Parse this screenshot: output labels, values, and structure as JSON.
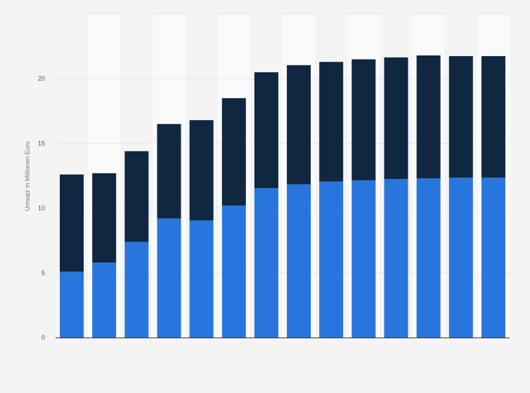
{
  "colors": {
    "background": "#f4f4f4",
    "stripe": "#fafafa",
    "gridline": "#dcdcdc",
    "axis_line": "#333333",
    "bottom_series": "#2876dd",
    "top_series": "#0f2740"
  },
  "chart_data": {
    "type": "bar",
    "stacked": true,
    "title": "",
    "xlabel": "",
    "ylabel": "Umsatz in Millionen Euro",
    "ylim": [
      0,
      25
    ],
    "yticks": [
      0,
      5,
      10,
      15,
      20
    ],
    "grid": true,
    "legend": "none",
    "categories_count": 14,
    "series": [
      {
        "color_key": "bottom_series",
        "values": [
          5.1,
          5.8,
          7.4,
          9.2,
          9.05,
          10.2,
          11.55,
          11.85,
          12.05,
          12.15,
          12.25,
          12.3,
          12.35,
          12.35
        ]
      },
      {
        "color_key": "top_series",
        "values": [
          7.5,
          6.9,
          7.0,
          7.3,
          7.75,
          8.3,
          8.95,
          9.2,
          9.25,
          9.35,
          9.4,
          9.5,
          9.4,
          9.4
        ]
      }
    ]
  }
}
